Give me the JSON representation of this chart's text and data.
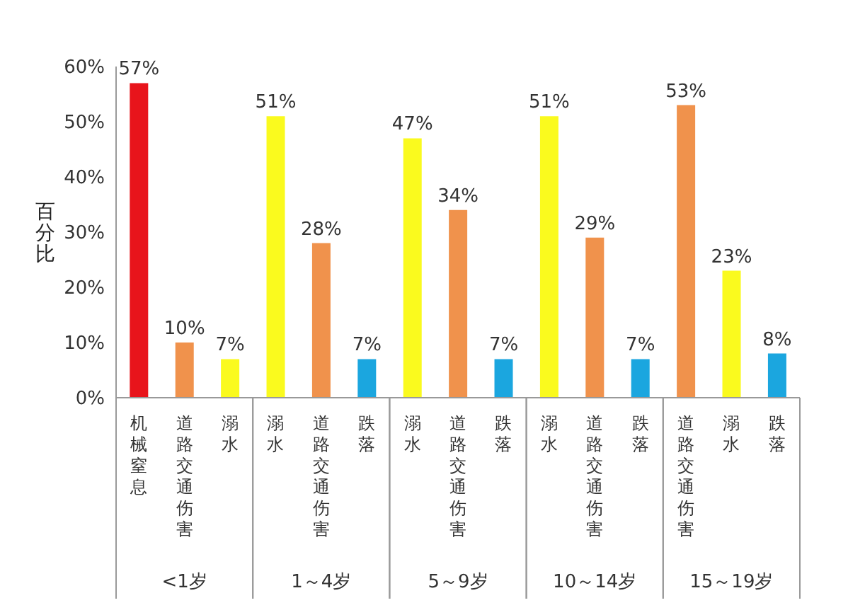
{
  "chart_data": {
    "type": "bar",
    "ylabel": "百分比",
    "categories": [
      "机械窒息",
      "道路交通伤害",
      "溺水",
      "溺水",
      "道路交通伤害",
      "跌落",
      "溺水",
      "道路交通伤害",
      "跌落",
      "溺水",
      "道路交通伤害",
      "跌落",
      "道路交通伤害",
      "溺水",
      "跌落"
    ],
    "values": [
      57,
      10,
      7,
      51,
      28,
      7,
      47,
      34,
      7,
      51,
      29,
      7,
      53,
      23,
      8
    ],
    "value_labels": [
      "57%",
      "10%",
      "7%",
      "51%",
      "28%",
      "7%",
      "47%",
      "34%",
      "7%",
      "51%",
      "29%",
      "7%",
      "53%",
      "23%",
      "8%"
    ],
    "colors": [
      "#e8141b",
      "#f0924c",
      "#fafa1e",
      "#fafa1e",
      "#f0924c",
      "#1ba6df",
      "#fafa1e",
      "#f0924c",
      "#1ba6df",
      "#fafa1e",
      "#f0924c",
      "#1ba6df",
      "#f0924c",
      "#fafa1e",
      "#1ba6df"
    ],
    "annotations": [
      "<1岁",
      "1～4岁",
      "5～9岁",
      "10～14岁",
      "15～19岁"
    ],
    "ylim": [
      0,
      60
    ],
    "yticks": [
      {
        "value": 0,
        "label": "0%"
      },
      {
        "value": 10,
        "label": "10%"
      },
      {
        "value": 20,
        "label": "20%"
      },
      {
        "value": 30,
        "label": "30%"
      },
      {
        "value": 40,
        "label": "40%"
      },
      {
        "value": 50,
        "label": "50%"
      },
      {
        "value": 60,
        "label": "60%"
      }
    ],
    "grid": false,
    "legend": false
  }
}
